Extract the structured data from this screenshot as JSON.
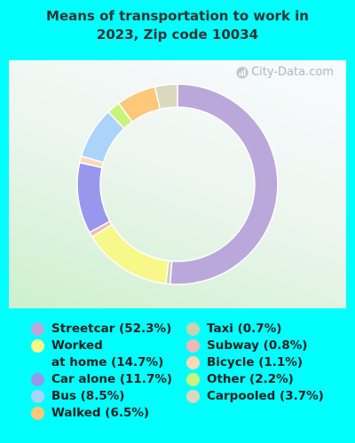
{
  "chart_data": {
    "type": "pie",
    "title_lines": [
      "Means of transportation to work in",
      "2023, Zip code 10034"
    ],
    "watermark": "City-Data.com",
    "slices": [
      {
        "label": "Streetcar",
        "value": 52.3,
        "color": "#bba8db"
      },
      {
        "label": "Taxi",
        "value": 0.7,
        "color": "#c8d2b0"
      },
      {
        "label": "Worked at home",
        "value": 14.7,
        "color": "#f7f78a"
      },
      {
        "label": "Subway",
        "value": 0.8,
        "color": "#f0b8b8"
      },
      {
        "label": "Car alone",
        "value": 11.7,
        "color": "#9797ee"
      },
      {
        "label": "Bicycle",
        "value": 1.1,
        "color": "#fdd9b8"
      },
      {
        "label": "Bus",
        "value": 8.5,
        "color": "#acd3fa"
      },
      {
        "label": "Other",
        "value": 2.2,
        "color": "#c8f47c"
      },
      {
        "label": "Walked",
        "value": 6.5,
        "color": "#fec87a"
      },
      {
        "label": "Carpooled",
        "value": 3.7,
        "color": "#dcd8bf"
      }
    ],
    "legend_left": [
      {
        "text": "Streetcar (52.3%)",
        "color": "#bba8db"
      },
      {
        "text": "Worked\nat home (14.7%)",
        "color": "#f7f78a"
      },
      {
        "text": "Car alone (11.7%)",
        "color": "#9797ee"
      },
      {
        "text": "Bus (8.5%)",
        "color": "#acd3fa"
      },
      {
        "text": "Walked (6.5%)",
        "color": "#fec87a"
      }
    ],
    "legend_right": [
      {
        "text": "Taxi (0.7%)",
        "color": "#c8d2b0"
      },
      {
        "text": "Subway (0.8%)",
        "color": "#f0b8b8"
      },
      {
        "text": "Bicycle (1.1%)",
        "color": "#fdd9b8"
      },
      {
        "text": "Other (2.2%)",
        "color": "#c8f47c"
      },
      {
        "text": "Carpooled (3.7%)",
        "color": "#dcd8bf"
      }
    ]
  }
}
